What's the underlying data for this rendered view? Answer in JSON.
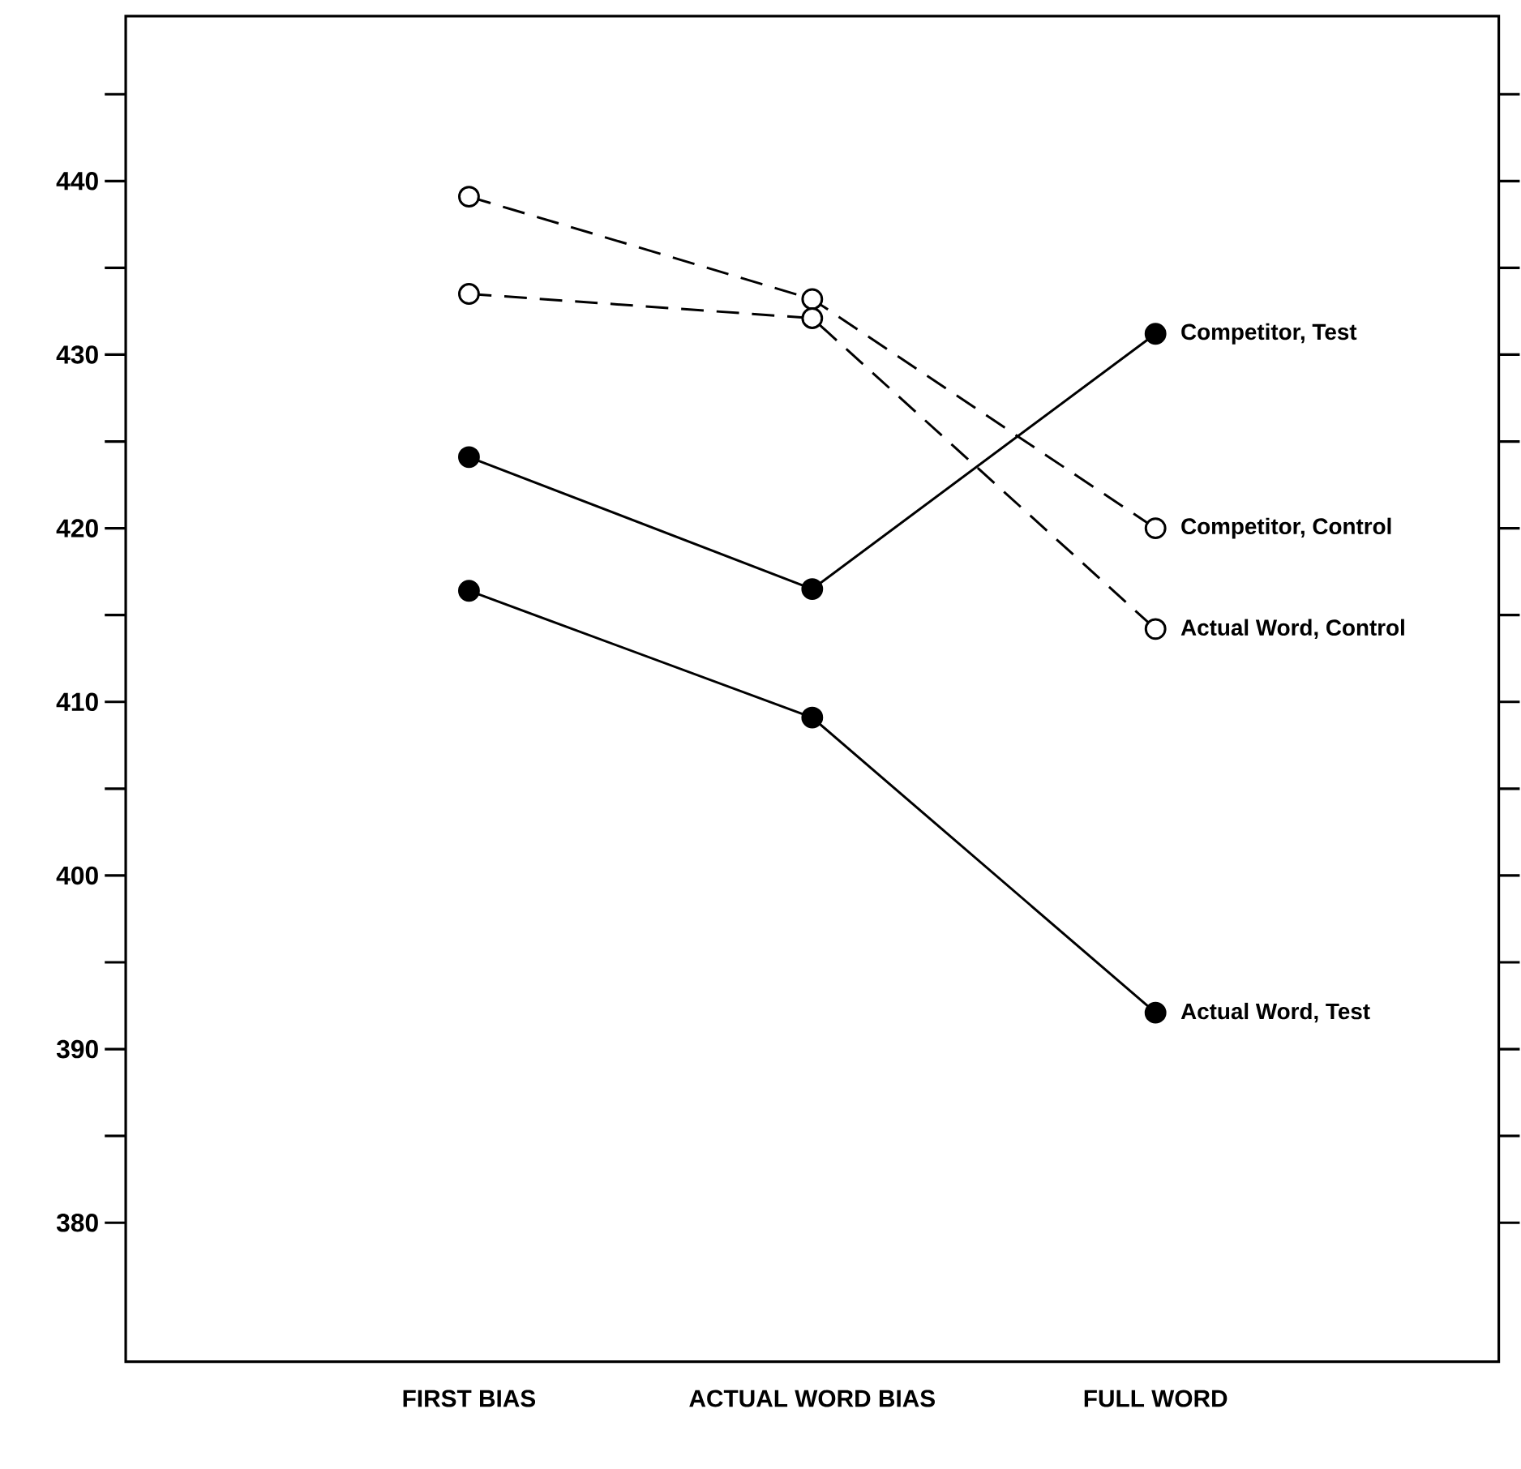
{
  "chart_data": {
    "type": "line",
    "categories": [
      "FIRST BIAS",
      "ACTUAL WORD BIAS",
      "FULL WORD"
    ],
    "ylim": [
      372,
      449.5
    ],
    "yticks": [
      {
        "value": 385,
        "label": null
      },
      380,
      390,
      {
        "value": 395,
        "label": null
      },
      400,
      {
        "value": 405,
        "label": null
      },
      410,
      {
        "value": 415,
        "label": null
      },
      420,
      {
        "value": 425,
        "label": null
      },
      430,
      {
        "value": 435,
        "label": null
      },
      440,
      {
        "value": 445,
        "label": null
      }
    ],
    "marker": "circle",
    "series": [
      {
        "name": "Competitor, Test",
        "color": "#000000",
        "line_style": "solid",
        "values": [
          424.1,
          416.5,
          431.2
        ]
      },
      {
        "name": "Competitor, Control",
        "color": "#000000",
        "line_style": "dashed",
        "values": [
          439.1,
          433.2,
          420.0
        ]
      },
      {
        "name": "Actual Word, Control",
        "color": "#000000",
        "line_style": "dashed",
        "values": [
          433.5,
          432.1,
          414.2
        ]
      },
      {
        "name": "Actual Word, Test",
        "color": "#000000",
        "line_style": "solid",
        "values": [
          416.4,
          409.1,
          392.1
        ]
      }
    ]
  }
}
